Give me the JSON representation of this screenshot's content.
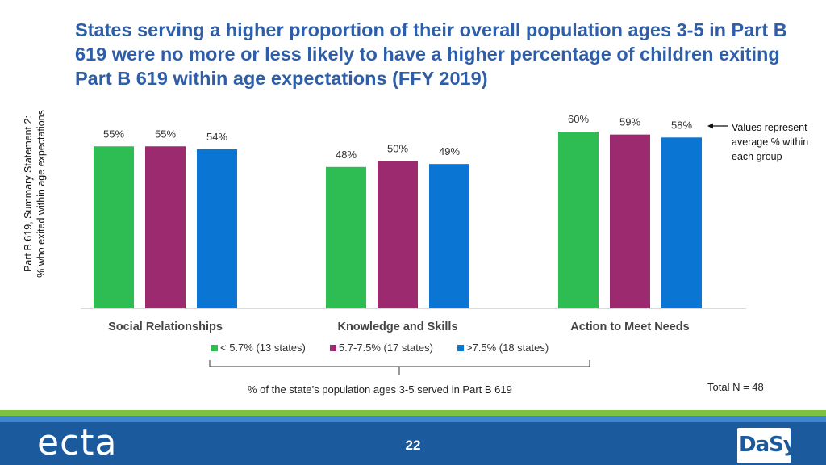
{
  "title": "States serving a higher proportion of their overall population ages 3-5 in Part B 619 were no more or less likely to have a higher percentage of children exiting Part B 619 within age expectations (FFY 2019)",
  "ylabel_line1": "Part B 619, Summary Statement 2:",
  "ylabel_line2": "% who exited within age expectations",
  "annotation": "Values represent average % within each group",
  "xcaption": "% of the state’s population ages 3-5 served in Part B 619",
  "total": "Total N = 48",
  "page_number": "22",
  "logo_left": "ecta",
  "logo_right": "DaSy",
  "colors": {
    "green": "#2dbd52",
    "purple": "#9b2b6e",
    "blue": "#0b75d4",
    "title": "#2f5ea8"
  },
  "chart_data": {
    "type": "bar",
    "categories": [
      "Social Relationships",
      "Knowledge and Skills",
      "Action to Meet Needs"
    ],
    "series": [
      {
        "name": "< 5.7% (13 states)",
        "color": "#2dbd52",
        "values": [
          55,
          48,
          60
        ],
        "labels": [
          "55%",
          "48%",
          "60%"
        ]
      },
      {
        "name": "5.7-7.5% (17 states)",
        "color": "#9b2b6e",
        "values": [
          55,
          50,
          59
        ],
        "labels": [
          "55%",
          "50%",
          "59%"
        ]
      },
      {
        "name": ">7.5%  (18 states)",
        "color": "#0b75d4",
        "values": [
          54,
          49,
          58
        ],
        "labels": [
          "54%",
          "49%",
          "58%"
        ]
      }
    ],
    "ylim": [
      0,
      60
    ],
    "xlabel": "% of the state’s population ages 3-5 served in Part B 619",
    "ylabel": "Part B 619, Summary Statement 2: % who exited within age expectations",
    "legend_position": "bottom"
  }
}
